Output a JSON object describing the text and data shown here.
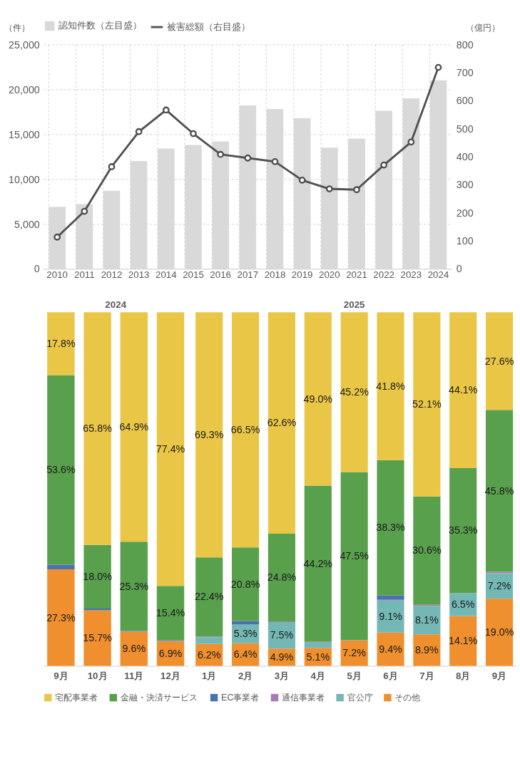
{
  "chart_data": [
    {
      "type": "bar",
      "categories": [
        "2010",
        "2011",
        "2012",
        "2013",
        "2014",
        "2015",
        "2016",
        "2017",
        "2018",
        "2019",
        "2020",
        "2021",
        "2022",
        "2023",
        "2024"
      ],
      "series": [
        {
          "name": "認知件数（左目盛）",
          "color": "#d9d9d9",
          "values": [
            6900,
            7200,
            8700,
            12000,
            13400,
            13800,
            14200,
            18200,
            17800,
            16800,
            13500,
            14500,
            17600,
            19000,
            21000
          ]
        },
        {
          "name": "被害総額（右目盛）",
          "type": "line",
          "axis": "y2",
          "color": "#505050",
          "marker": "circle",
          "line_style": "solid",
          "values": [
            113,
            205,
            364,
            489,
            566,
            482,
            408,
            395,
            382,
            316,
            285,
            282,
            370,
            452,
            718
          ]
        }
      ],
      "ylabel": "（件）",
      "y2label": "（億円）",
      "ylim": [
        0,
        25000
      ],
      "yticks": [
        0,
        {
          "value": 5000,
          "label": "5,000"
        },
        {
          "value": 10000,
          "label": "10,000"
        },
        {
          "value": 15000,
          "label": "15,000"
        },
        {
          "value": 20000,
          "label": "20,000"
        },
        {
          "value": 25000,
          "label": "25,000"
        }
      ],
      "y2lim": [
        0,
        800
      ],
      "y2ticks": [
        0,
        100,
        200,
        300,
        400,
        500,
        600,
        700,
        800
      ],
      "grid": true,
      "legend": "top"
    },
    {
      "type": "bar",
      "stacked": true,
      "title": "2024",
      "categories": [
        "9月",
        "10月",
        "11月",
        "12月"
      ],
      "series": [
        {
          "name": "その他",
          "color": "#ef8f2e",
          "values": [
            27.3,
            15.7,
            9.6,
            6.9
          ],
          "value_labels": [
            "27.3%",
            "15.7%",
            "9.6%",
            "6.9%"
          ]
        },
        {
          "name": "通信事業者",
          "color": "#a77bb5",
          "values": [
            0,
            0,
            0.2,
            0.3
          ]
        },
        {
          "name": "EC事業者",
          "color": "#4a72b0",
          "values": [
            1.3,
            0.5,
            0,
            0
          ]
        },
        {
          "name": "金融・決済サービス",
          "color": "#58a04c",
          "values": [
            53.6,
            18.0,
            25.3,
            15.4
          ],
          "value_labels": [
            "53.6%",
            "18.0%",
            "25.3%",
            "15.4%"
          ]
        },
        {
          "name": "宅配事業者",
          "color": "#e9c645",
          "values": [
            17.8,
            65.8,
            64.9,
            77.4
          ],
          "value_labels": [
            "17.8%",
            "65.8%",
            "64.9%",
            "77.4%"
          ]
        }
      ],
      "legend": "bottom"
    },
    {
      "type": "bar",
      "stacked": true,
      "title": "2025",
      "categories": [
        "1月",
        "2月",
        "3月",
        "4月",
        "5月",
        "6月",
        "7月",
        "8月",
        "9月"
      ],
      "series": [
        {
          "name": "その他",
          "color": "#ef8f2e",
          "values": [
            6.2,
            6.4,
            4.9,
            5.1,
            7.2,
            9.4,
            8.9,
            14.1,
            19.0
          ],
          "value_labels": [
            "6.2%",
            "6.4%",
            "4.9%",
            "5.1%",
            "7.2%",
            "9.4%",
            "8.9%",
            "14.1%",
            "19.0%"
          ]
        },
        {
          "name": "官公庁",
          "color": "#74b8b5",
          "values": [
            1.9,
            5.3,
            7.5,
            1.5,
            0,
            9.1,
            8.1,
            6.5,
            7.2
          ],
          "value_labels": [
            null,
            "5.3%",
            "7.5%",
            null,
            null,
            "9.1%",
            "8.1%",
            "6.5%",
            "7.2%"
          ]
        },
        {
          "name": "通信事業者",
          "color": "#a77bb5",
          "values": [
            0.2,
            0,
            0.2,
            0.2,
            0.1,
            0.2,
            0.3,
            0,
            0.4
          ]
        },
        {
          "name": "EC事業者",
          "color": "#4a72b0",
          "values": [
            0,
            1.0,
            0,
            0,
            0,
            1.2,
            0,
            0,
            0
          ]
        },
        {
          "name": "金融・決済サービス",
          "color": "#58a04c",
          "values": [
            22.4,
            20.8,
            24.8,
            44.2,
            47.5,
            38.3,
            30.6,
            35.3,
            45.8
          ],
          "value_labels": [
            "22.4%",
            "20.8%",
            "24.8%",
            "44.2%",
            "47.5%",
            "38.3%",
            "30.6%",
            "35.3%",
            "45.8%"
          ]
        },
        {
          "name": "宅配事業者",
          "color": "#e9c645",
          "values": [
            69.3,
            66.5,
            62.6,
            49.0,
            45.2,
            41.8,
            52.1,
            44.1,
            27.6
          ],
          "value_labels": [
            "69.3%",
            "66.5%",
            "62.6%",
            "49.0%",
            "45.2%",
            "41.8%",
            "52.1%",
            "44.1%",
            "27.6%"
          ]
        }
      ],
      "legend": "bottom"
    }
  ]
}
